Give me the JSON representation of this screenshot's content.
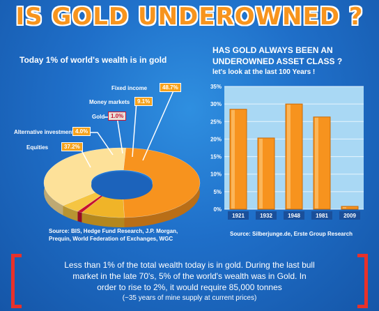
{
  "title": "IS GOLD UNDEROWNED ?",
  "left_chart": {
    "subtitle": "Today 1% of world's wealth is in gold",
    "source": [
      "Source: BIS, Hedge Fund Research, J.P. Morgan,",
      "Prequin, World Federation of Exchanges, WGC"
    ]
  },
  "right_chart": {
    "subtitle_line1": "HAS GOLD ALWAYS BEEN AN",
    "subtitle_line2": "UNDEROWNED ASSET CLASS ?",
    "subtitle_line3": "let's look at the last 100 Years !",
    "source": "Source: Silberjunge.de, Erste Group Research"
  },
  "chart_data": [
    {
      "type": "pie",
      "slices": [
        {
          "label": "Fixed income",
          "display": "48.7%",
          "value": 48.7,
          "color": "#f7931e"
        },
        {
          "label": "Money markets",
          "display": "9.1%",
          "value": 9.1,
          "color": "#f0b428"
        },
        {
          "label": "Gold",
          "display": "1.0%",
          "value": 1.0,
          "color": "#c8102e"
        },
        {
          "label": "Alternative investment",
          "display": "4.0%",
          "value": 4.0,
          "color": "#f5c542"
        },
        {
          "label": "Equities",
          "display": "37.2%",
          "value": 37.2,
          "color": "#fde199"
        }
      ]
    },
    {
      "type": "bar",
      "categories": [
        "1921",
        "1932",
        "1948",
        "1981",
        "2009"
      ],
      "values": [
        28.5,
        20.3,
        30.0,
        26.3,
        0.8
      ],
      "ylim": [
        0,
        35
      ],
      "ticks": [
        "0%",
        "5%",
        "10%",
        "15%",
        "20%",
        "25%",
        "30%",
        "35%"
      ],
      "grid": true
    }
  ],
  "bottom": {
    "line1": "Less than 1% of the total wealth today is in gold. During the last bull",
    "line2": "market in the late 70's, 5% of the world's wealth was in Gold. In",
    "line3": "order to rise to 2%, it would require 85,000 tonnes",
    "line4": "(~35 years of mine supply at current prices)"
  }
}
